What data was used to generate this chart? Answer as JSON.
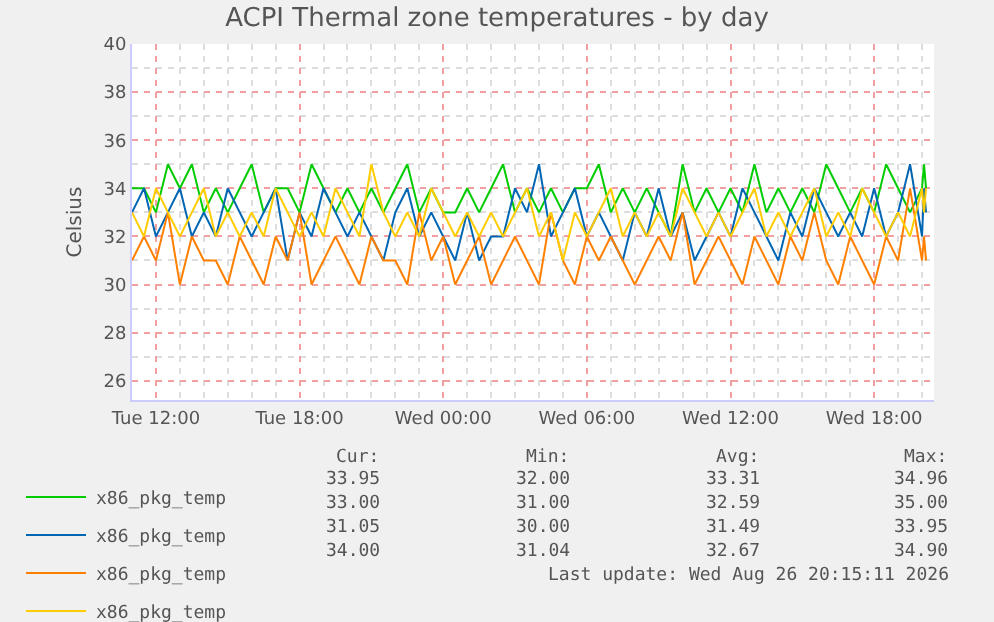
{
  "chart_data": {
    "type": "line",
    "title": "ACPI Thermal zone temperatures - by day",
    "ylabel": "Celsius",
    "x": [
      "2026-08-25T11:00",
      "2026-08-25T11:30",
      "2026-08-25T12:00",
      "2026-08-25T12:30",
      "2026-08-25T13:00",
      "2026-08-25T13:30",
      "2026-08-25T14:00",
      "2026-08-25T14:30",
      "2026-08-25T15:00",
      "2026-08-25T15:30",
      "2026-08-25T16:00",
      "2026-08-25T16:30",
      "2026-08-25T17:00",
      "2026-08-25T17:30",
      "2026-08-25T18:00",
      "2026-08-25T18:30",
      "2026-08-25T19:00",
      "2026-08-25T19:30",
      "2026-08-25T20:00",
      "2026-08-25T20:30",
      "2026-08-25T21:00",
      "2026-08-25T21:30",
      "2026-08-25T22:00",
      "2026-08-25T22:30",
      "2026-08-25T23:00",
      "2026-08-25T23:30",
      "2026-08-26T00:00",
      "2026-08-26T00:30",
      "2026-08-26T01:00",
      "2026-08-26T01:30",
      "2026-08-26T02:00",
      "2026-08-26T02:30",
      "2026-08-26T03:00",
      "2026-08-26T03:30",
      "2026-08-26T04:00",
      "2026-08-26T04:30",
      "2026-08-26T05:00",
      "2026-08-26T05:30",
      "2026-08-26T06:00",
      "2026-08-26T06:30",
      "2026-08-26T07:00",
      "2026-08-26T07:30",
      "2026-08-26T08:00",
      "2026-08-26T08:30",
      "2026-08-26T09:00",
      "2026-08-26T09:30",
      "2026-08-26T10:00",
      "2026-08-26T10:30",
      "2026-08-26T11:00",
      "2026-08-26T11:30",
      "2026-08-26T12:00",
      "2026-08-26T12:30",
      "2026-08-26T13:00",
      "2026-08-26T13:30",
      "2026-08-26T14:00",
      "2026-08-26T14:30",
      "2026-08-26T15:00",
      "2026-08-26T15:30",
      "2026-08-26T16:00",
      "2026-08-26T16:30",
      "2026-08-26T17:00",
      "2026-08-26T17:30",
      "2026-08-26T18:00",
      "2026-08-26T18:30",
      "2026-08-26T19:00",
      "2026-08-26T19:30",
      "2026-08-26T20:00",
      "2026-08-26T20:05",
      "2026-08-26T20:10"
    ],
    "series": [
      {
        "name": "x86_pkg_temp",
        "color": "#00cc00",
        "values": [
          34,
          34,
          33,
          35,
          34,
          35,
          33,
          34,
          33,
          34,
          35,
          33,
          34,
          34,
          33,
          35,
          34,
          33,
          34,
          33,
          34,
          33,
          34,
          35,
          33,
          34,
          33,
          33,
          34,
          33,
          34,
          35,
          33,
          34,
          33,
          34,
          33,
          34,
          34,
          35,
          33,
          34,
          33,
          34,
          33,
          32,
          35,
          33,
          34,
          33,
          34,
          33,
          35,
          33,
          34,
          33,
          34,
          33,
          35,
          34,
          33,
          34,
          33,
          35,
          34,
          33,
          34,
          35,
          34
        ]
      },
      {
        "name": "x86_pkg_temp",
        "color": "#0066b3",
        "values": [
          33,
          34,
          32,
          33,
          34,
          32,
          33,
          32,
          34,
          33,
          32,
          33,
          34,
          31,
          33,
          32,
          34,
          33,
          32,
          33,
          32,
          31,
          33,
          34,
          32,
          33,
          32,
          31,
          33,
          31,
          32,
          32,
          34,
          33,
          35,
          32,
          33,
          34,
          32,
          33,
          32,
          31,
          33,
          32,
          34,
          32,
          33,
          31,
          32,
          33,
          32,
          34,
          33,
          32,
          31,
          33,
          32,
          34,
          33,
          32,
          33,
          32,
          34,
          32,
          33,
          35,
          32,
          34,
          33
        ]
      },
      {
        "name": "x86_pkg_temp",
        "color": "#ff8000",
        "values": [
          31,
          32,
          31,
          33,
          30,
          32,
          31,
          31,
          30,
          32,
          31,
          30,
          32,
          31,
          33,
          30,
          31,
          32,
          31,
          30,
          32,
          31,
          31,
          30,
          33,
          31,
          32,
          30,
          31,
          32,
          30,
          31,
          32,
          31,
          30,
          33,
          31,
          30,
          32,
          31,
          32,
          31,
          30,
          31,
          32,
          31,
          33,
          30,
          31,
          32,
          31,
          30,
          32,
          31,
          30,
          32,
          31,
          33,
          31,
          30,
          32,
          31,
          30,
          32,
          31,
          34,
          31,
          32,
          31
        ]
      },
      {
        "name": "x86_pkg_temp",
        "color": "#ffcc00",
        "values": [
          33,
          32,
          34,
          33,
          32,
          33,
          34,
          32,
          33,
          32,
          33,
          32,
          34,
          33,
          32,
          33,
          32,
          34,
          33,
          32,
          35,
          33,
          32,
          33,
          32,
          34,
          33,
          32,
          33,
          32,
          33,
          32,
          33,
          34,
          32,
          33,
          31,
          33,
          32,
          33,
          34,
          32,
          33,
          32,
          33,
          32,
          34,
          33,
          32,
          33,
          32,
          33,
          34,
          32,
          33,
          32,
          33,
          34,
          32,
          33,
          32,
          34,
          33,
          32,
          33,
          32,
          34,
          33,
          34
        ]
      }
    ],
    "xlim": [
      "2026-08-25T11:00",
      "2026-08-26T20:30"
    ],
    "xticks": [
      {
        "value": "2026-08-25T12:00",
        "label": "Tue 12:00"
      },
      {
        "value": "2026-08-25T18:00",
        "label": "Tue 18:00"
      },
      {
        "value": "2026-08-26T00:00",
        "label": "Wed 00:00"
      },
      {
        "value": "2026-08-26T06:00",
        "label": "Wed 06:00"
      },
      {
        "value": "2026-08-26T12:00",
        "label": "Wed 12:00"
      },
      {
        "value": "2026-08-26T18:00",
        "label": "Wed 18:00"
      }
    ],
    "ylim": [
      25.2,
      40
    ],
    "yticks": [
      26,
      28,
      30,
      32,
      34,
      36,
      38,
      40
    ],
    "grid": true,
    "legend": "bottom left",
    "annotations": [
      "Cur:",
      "Min:",
      "Avg:",
      "Max:",
      "33.95",
      "32.00",
      "33.31",
      "34.96",
      "33.00",
      "31.00",
      "32.59",
      "35.00",
      "31.05",
      "30.00",
      "31.49",
      "33.95",
      "34.00",
      "31.04",
      "32.67",
      "34.90",
      "Last update: Wed Aug 26 20:15:11 2026"
    ]
  }
}
